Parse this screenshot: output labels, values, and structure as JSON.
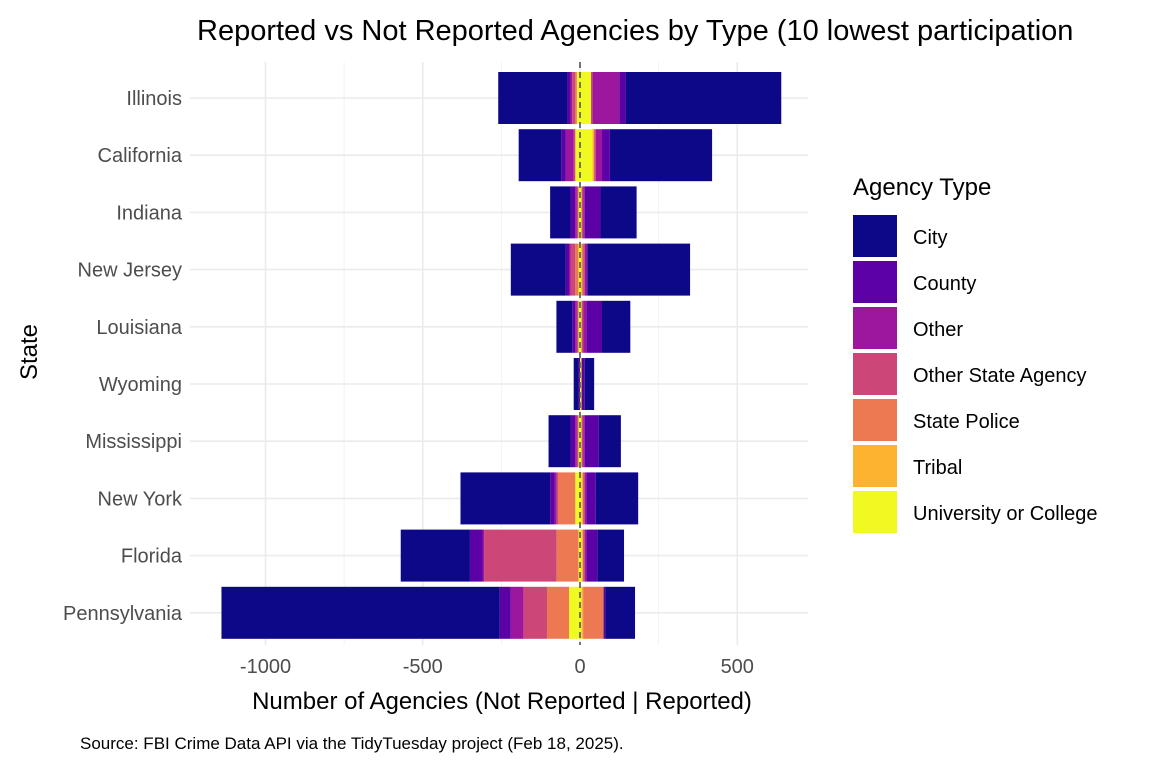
{
  "chart_data": {
    "type": "bar",
    "orientation": "horizontal",
    "stacking": "diverging",
    "title": "Reported vs Not Reported Agencies by Type (10 lowest participation",
    "xlabel": "Number of Agencies (Not Reported | Reported)",
    "ylabel": "State",
    "caption": "Source: FBI Crime Data API via the TidyTuesday project (Feb 18, 2025).",
    "xlim": [
      -1150,
      730
    ],
    "xticks": [
      -1000,
      -500,
      0,
      500
    ],
    "xtick_labels": [
      "-1000",
      "-500",
      "0",
      "500"
    ],
    "grid": true,
    "zero_line": "dashed",
    "legend_title": "Agency Type",
    "legend_position": "right",
    "categories": [
      "Illinois",
      "California",
      "Indiana",
      "New Jersey",
      "Louisiana",
      "Wyoming",
      "Mississippi",
      "New York",
      "Florida",
      "Pennsylvania"
    ],
    "series": [
      {
        "name": "City",
        "color": "#0D0887",
        "not_reported": [
          -220,
          -135,
          -65,
          -175,
          -50,
          -15,
          -70,
          -285,
          -220,
          -885
        ],
        "reported": [
          495,
          325,
          115,
          325,
          90,
          30,
          70,
          135,
          85,
          95
        ]
      },
      {
        "name": "County",
        "color": "#5C01A6",
        "not_reported": [
          -10,
          -15,
          -15,
          -10,
          -10,
          -5,
          -15,
          -15,
          -40,
          -35
        ],
        "reported": [
          20,
          25,
          50,
          5,
          50,
          10,
          45,
          30,
          35,
          5
        ]
      },
      {
        "name": "Other",
        "color": "#9C179E",
        "not_reported": [
          -5,
          -25,
          -5,
          -5,
          -5,
          0,
          -5,
          -5,
          -5,
          -40
        ],
        "reported": [
          85,
          20,
          5,
          5,
          10,
          0,
          5,
          5,
          5,
          0
        ]
      },
      {
        "name": "Other State Agency",
        "color": "#CC4778",
        "not_reported": [
          -10,
          -5,
          -5,
          -15,
          -5,
          0,
          -5,
          -5,
          -230,
          -75
        ],
        "reported": [
          5,
          5,
          5,
          5,
          5,
          0,
          5,
          5,
          5,
          0
        ]
      },
      {
        "name": "State Police",
        "color": "#ED7953",
        "not_reported": [
          -5,
          0,
          0,
          -10,
          0,
          0,
          0,
          -55,
          -70,
          -70
        ],
        "reported": [
          0,
          0,
          0,
          5,
          0,
          0,
          0,
          0,
          0,
          65
        ]
      },
      {
        "name": "Tribal",
        "color": "#FDB32F",
        "not_reported": [
          0,
          0,
          0,
          0,
          0,
          0,
          0,
          0,
          0,
          0
        ],
        "reported": [
          0,
          5,
          0,
          0,
          0,
          0,
          0,
          5,
          5,
          5
        ]
      },
      {
        "name": "University or College",
        "color": "#F0F921",
        "not_reported": [
          -10,
          -15,
          -5,
          -5,
          -5,
          0,
          -5,
          -15,
          -5,
          -35
        ],
        "reported": [
          35,
          40,
          5,
          5,
          5,
          5,
          5,
          5,
          5,
          5
        ]
      }
    ]
  }
}
